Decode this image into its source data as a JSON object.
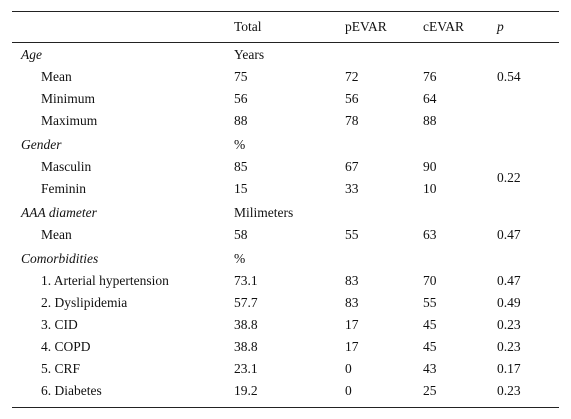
{
  "table": {
    "header": [
      "Total",
      "pEVAR",
      "cEVAR",
      "p"
    ],
    "sections": [
      {
        "title": "Age",
        "unit": "Years",
        "rows": [
          {
            "label": "Mean",
            "total": 75,
            "pevar": 72,
            "cevar": 76,
            "p": 0.54
          },
          {
            "label": "Minimum",
            "total": 56,
            "pevar": 56,
            "cevar": 64
          },
          {
            "label": "Maximum",
            "total": 88,
            "pevar": 78,
            "cevar": 88
          }
        ]
      },
      {
        "title": "Gender",
        "unit": "%",
        "p": 0.22,
        "rows": [
          {
            "label": "Masculin",
            "total": 85,
            "pevar": 67,
            "cevar": 90
          },
          {
            "label": "Feminin",
            "total": 15,
            "pevar": 33,
            "cevar": 10
          }
        ]
      },
      {
        "title": "AAA diameter",
        "unit": "Milimeters",
        "rows": [
          {
            "label": "Mean",
            "total": 58,
            "pevar": 55,
            "cevar": 63,
            "p": 0.47
          }
        ]
      },
      {
        "title": "Comorbidities",
        "unit": "%",
        "rows": [
          {
            "label": "1. Arterial hypertension",
            "total": 73.1,
            "pevar": 83,
            "cevar": 70,
            "p": 0.47
          },
          {
            "label": "2. Dyslipidemia",
            "total": 57.7,
            "pevar": 83,
            "cevar": 55,
            "p": 0.49
          },
          {
            "label": "3. CID",
            "total": 38.8,
            "pevar": 17,
            "cevar": 45,
            "p": 0.23
          },
          {
            "label": "4. COPD",
            "total": 38.8,
            "pevar": 17,
            "cevar": 45,
            "p": 0.23
          },
          {
            "label": "5. CRF",
            "total": 23.1,
            "pevar": 0,
            "cevar": 43,
            "p": 0.17
          },
          {
            "label": "6. Diabetes",
            "total": 19.2,
            "pevar": 0,
            "cevar": 25,
            "p": 0.23
          }
        ]
      }
    ]
  }
}
